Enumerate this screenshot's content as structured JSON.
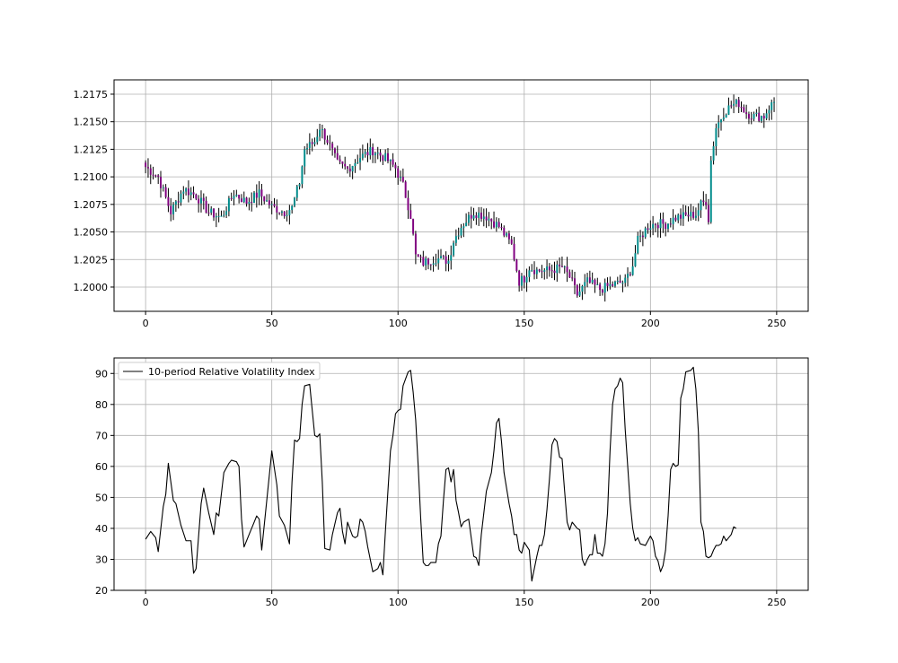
{
  "chart_data": [
    {
      "type": "candlestick",
      "title": "",
      "xlabel": "",
      "ylabel": "",
      "xlim": [
        -12.5,
        262.5
      ],
      "ylim": [
        1.1978,
        1.2188
      ],
      "xticks": [
        0,
        50,
        100,
        150,
        200,
        250
      ],
      "xtick_labels": [
        "0",
        "50",
        "100",
        "150",
        "200",
        "250"
      ],
      "yticks": [
        1.2,
        1.2025,
        1.205,
        1.2075,
        1.21,
        1.2125,
        1.215,
        1.2175
      ],
      "ytick_labels": [
        "1.2000",
        "1.2025",
        "1.2050",
        "1.2075",
        "1.2100",
        "1.2125",
        "1.2150",
        "1.2175"
      ],
      "grid": true,
      "up_color": "#008b8b",
      "down_color": "#800080",
      "wick_color": "#000000",
      "close_path": [
        [
          0,
          1.2109
        ],
        [
          5,
          1.21
        ],
        [
          10,
          1.2068
        ],
        [
          15,
          1.2089
        ],
        [
          20,
          1.2083
        ],
        [
          25,
          1.2068
        ],
        [
          30,
          1.2063
        ],
        [
          35,
          1.2085
        ],
        [
          40,
          1.2077
        ],
        [
          45,
          1.2085
        ],
        [
          50,
          1.2073
        ],
        [
          55,
          1.2068
        ],
        [
          58,
          1.2072
        ],
        [
          61,
          1.2095
        ],
        [
          63,
          1.2125
        ],
        [
          67,
          1.2132
        ],
        [
          69,
          1.2145
        ],
        [
          72,
          1.2133
        ],
        [
          76,
          1.2112
        ],
        [
          80,
          1.2107
        ],
        [
          85,
          1.2118
        ],
        [
          90,
          1.2124
        ],
        [
          95,
          1.2117
        ],
        [
          99,
          1.2108
        ],
        [
          102,
          1.2092
        ],
        [
          105,
          1.2065
        ],
        [
          107,
          1.2028
        ],
        [
          110,
          1.2022
        ],
        [
          115,
          1.2026
        ],
        [
          120,
          1.2024
        ],
        [
          122,
          1.2042
        ],
        [
          125,
          1.2055
        ],
        [
          130,
          1.2068
        ],
        [
          135,
          1.2064
        ],
        [
          140,
          1.2055
        ],
        [
          145,
          1.2038
        ],
        [
          148,
          1.2005
        ],
        [
          150,
          1.2008
        ],
        [
          152,
          1.2018
        ],
        [
          155,
          1.2015
        ],
        [
          160,
          1.2015
        ],
        [
          165,
          1.2018
        ],
        [
          168,
          1.2009
        ],
        [
          171,
          1.1993
        ],
        [
          175,
          1.2005
        ],
        [
          180,
          1.1998
        ],
        [
          185,
          1.2002
        ],
        [
          190,
          1.2005
        ],
        [
          193,
          1.202
        ],
        [
          195,
          1.2042
        ],
        [
          199,
          1.2055
        ],
        [
          202,
          1.2058
        ],
        [
          206,
          1.2057
        ],
        [
          210,
          1.2063
        ],
        [
          215,
          1.2065
        ],
        [
          218,
          1.2066
        ],
        [
          220,
          1.2075
        ],
        [
          222,
          1.2078
        ],
        [
          223,
          1.2062
        ],
        [
          224,
          1.2115
        ],
        [
          226,
          1.2145
        ],
        [
          229,
          1.2158
        ],
        [
          232,
          1.2165
        ],
        [
          235,
          1.2167
        ],
        [
          238,
          1.2158
        ],
        [
          241,
          1.2155
        ],
        [
          245,
          1.2155
        ],
        [
          247,
          1.2163
        ],
        [
          249,
          1.2168
        ]
      ]
    },
    {
      "type": "line",
      "title": "",
      "xlabel": "",
      "ylabel": "",
      "xlim": [
        -12.5,
        262.5
      ],
      "ylim": [
        20,
        95
      ],
      "xticks": [
        0,
        50,
        100,
        150,
        200,
        250
      ],
      "xtick_labels": [
        "0",
        "50",
        "100",
        "150",
        "200",
        "250"
      ],
      "yticks": [
        20,
        30,
        40,
        50,
        60,
        70,
        80,
        90
      ],
      "ytick_labels": [
        "20",
        "30",
        "40",
        "50",
        "60",
        "70",
        "80",
        "90"
      ],
      "grid": true,
      "legend_position": "top-left",
      "series": [
        {
          "name": "10-period Relative Volatility Index",
          "color": "#000000",
          "points": [
            [
              0,
              36.5
            ],
            [
              2,
              39
            ],
            [
              4,
              37
            ],
            [
              5,
              32.5
            ],
            [
              7,
              47
            ],
            [
              8,
              51
            ],
            [
              9,
              61
            ],
            [
              11,
              49
            ],
            [
              12,
              48
            ],
            [
              14,
              41
            ],
            [
              16,
              36
            ],
            [
              18,
              36
            ],
            [
              19,
              25.5
            ],
            [
              20,
              27
            ],
            [
              22,
              48
            ],
            [
              23,
              53
            ],
            [
              25,
              45
            ],
            [
              27,
              38
            ],
            [
              28,
              45
            ],
            [
              29,
              44
            ],
            [
              31,
              58
            ],
            [
              33,
              61
            ],
            [
              34,
              62
            ],
            [
              36,
              61.5
            ],
            [
              37,
              60
            ],
            [
              38,
              43
            ],
            [
              39,
              34
            ],
            [
              41,
              38
            ],
            [
              43,
              42
            ],
            [
              44,
              44
            ],
            [
              45,
              43
            ],
            [
              46,
              33
            ],
            [
              48,
              49
            ],
            [
              50,
              65
            ],
            [
              52,
              54
            ],
            [
              53,
              44
            ],
            [
              55,
              41
            ],
            [
              57,
              35
            ],
            [
              58,
              55
            ],
            [
              59,
              68.5
            ],
            [
              60,
              68
            ],
            [
              61,
              69
            ],
            [
              62,
              80
            ],
            [
              63,
              86
            ],
            [
              65,
              86.5
            ],
            [
              67,
              70
            ],
            [
              68,
              69.5
            ],
            [
              69,
              70.5
            ],
            [
              70,
              55
            ],
            [
              71,
              33.5
            ],
            [
              73,
              33
            ],
            [
              74,
              38
            ],
            [
              76,
              45
            ],
            [
              77,
              46.5
            ],
            [
              78,
              39
            ],
            [
              79,
              35
            ],
            [
              80,
              42
            ],
            [
              82,
              37.5
            ],
            [
              83,
              37
            ],
            [
              84,
              37.5
            ],
            [
              85,
              43
            ],
            [
              86,
              42
            ],
            [
              87,
              39
            ],
            [
              88,
              34
            ],
            [
              90,
              26
            ],
            [
              92,
              27
            ],
            [
              93,
              29
            ],
            [
              94,
              25
            ],
            [
              95,
              39
            ],
            [
              96,
              52
            ],
            [
              97,
              65
            ],
            [
              98,
              70
            ],
            [
              99,
              77
            ],
            [
              100,
              78
            ],
            [
              101,
              78.5
            ],
            [
              102,
              86
            ],
            [
              104,
              90.5
            ],
            [
              105,
              91
            ],
            [
              106,
              84
            ],
            [
              107,
              75
            ],
            [
              108,
              60
            ],
            [
              109,
              43
            ],
            [
              110,
              29
            ],
            [
              111,
              28
            ],
            [
              112,
              28
            ],
            [
              113,
              29
            ],
            [
              115,
              29
            ],
            [
              116,
              35
            ],
            [
              117,
              37.5
            ],
            [
              118,
              49
            ],
            [
              119,
              59
            ],
            [
              120,
              59.5
            ],
            [
              121,
              55
            ],
            [
              122,
              59
            ],
            [
              123,
              49
            ],
            [
              124,
              45
            ],
            [
              125,
              40.5
            ],
            [
              126,
              42
            ],
            [
              128,
              43
            ],
            [
              129,
              37
            ],
            [
              130,
              31
            ],
            [
              131,
              30.5
            ],
            [
              132,
              28
            ],
            [
              133,
              38
            ],
            [
              134,
              45
            ],
            [
              135,
              52
            ],
            [
              136,
              55
            ],
            [
              137,
              58
            ],
            [
              138,
              65
            ],
            [
              139,
              74
            ],
            [
              140,
              75.5
            ],
            [
              141,
              68
            ],
            [
              142,
              58
            ],
            [
              144,
              48
            ],
            [
              145,
              44
            ],
            [
              146,
              38
            ],
            [
              147,
              38
            ],
            [
              148,
              33
            ],
            [
              149,
              32
            ],
            [
              150,
              35.5
            ],
            [
              152,
              33
            ],
            [
              153,
              23
            ],
            [
              154,
              27
            ],
            [
              155,
              31
            ],
            [
              156,
              34.5
            ],
            [
              157,
              34.5
            ],
            [
              158,
              38
            ],
            [
              159,
              46
            ],
            [
              160,
              56
            ],
            [
              161,
              67
            ],
            [
              162,
              69
            ],
            [
              163,
              68
            ],
            [
              164,
              63
            ],
            [
              165,
              62.5
            ],
            [
              166,
              52
            ],
            [
              167,
              42
            ],
            [
              168,
              39.5
            ],
            [
              169,
              42
            ],
            [
              171,
              40
            ],
            [
              172,
              39.5
            ],
            [
              173,
              30
            ],
            [
              174,
              28
            ],
            [
              175,
              30
            ],
            [
              176,
              31.5
            ],
            [
              177,
              31.5
            ],
            [
              178,
              38
            ],
            [
              179,
              32
            ],
            [
              180,
              32
            ],
            [
              181,
              31
            ],
            [
              182,
              35
            ],
            [
              183,
              45
            ],
            [
              184,
              65
            ],
            [
              185,
              80
            ],
            [
              186,
              85
            ],
            [
              187,
              86
            ],
            [
              188,
              88.5
            ],
            [
              189,
              87
            ],
            [
              190,
              72
            ],
            [
              191,
              60
            ],
            [
              192,
              48
            ],
            [
              193,
              40
            ],
            [
              194,
              36
            ],
            [
              195,
              37
            ],
            [
              196,
              35
            ],
            [
              198,
              34.5
            ],
            [
              199,
              36
            ],
            [
              200,
              37.5
            ],
            [
              201,
              36
            ],
            [
              202,
              31
            ],
            [
              203,
              29.5
            ],
            [
              204,
              26
            ],
            [
              205,
              28
            ],
            [
              206,
              33
            ],
            [
              207,
              44
            ],
            [
              208,
              59
            ],
            [
              209,
              61
            ],
            [
              210,
              60
            ],
            [
              211,
              60.5
            ],
            [
              212,
              82
            ],
            [
              213,
              85
            ],
            [
              214,
              90.5
            ],
            [
              216,
              91
            ],
            [
              217,
              92
            ],
            [
              218,
              85
            ],
            [
              219,
              71
            ],
            [
              220,
              42
            ],
            [
              221,
              39
            ],
            [
              222,
              31
            ],
            [
              223,
              30.5
            ],
            [
              224,
              31
            ],
            [
              225,
              33
            ],
            [
              226,
              34.5
            ],
            [
              227,
              34.5
            ],
            [
              228,
              35
            ],
            [
              229,
              37.5
            ],
            [
              230,
              36
            ],
            [
              231,
              37
            ],
            [
              232,
              38
            ],
            [
              233,
              40.5
            ],
            [
              234,
              40
            ]
          ]
        }
      ]
    }
  ]
}
